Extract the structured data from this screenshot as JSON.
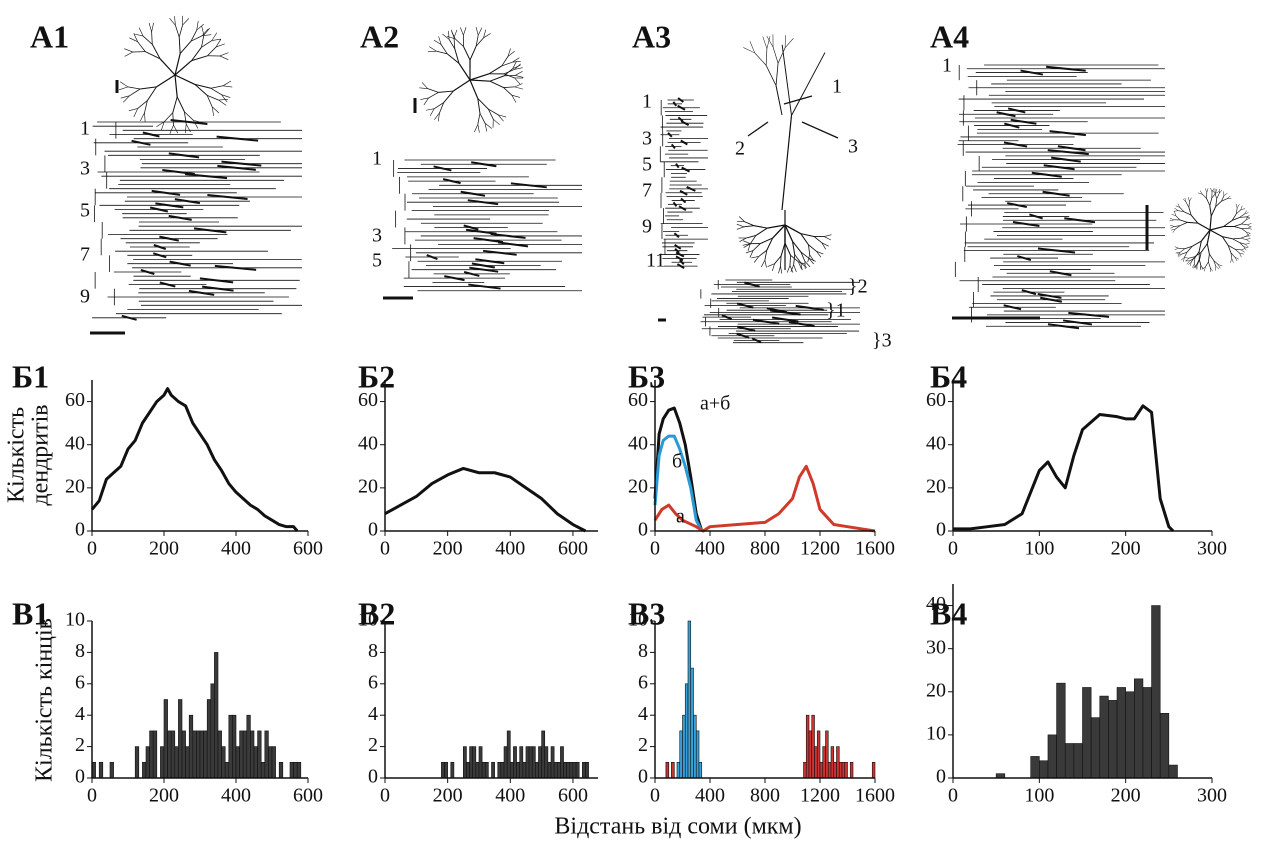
{
  "figure": {
    "xlabel": "Відстань від соми (мкм)"
  },
  "panels_a": [
    {
      "label": "A1",
      "numbers": [
        "1",
        "3",
        "5",
        "7",
        "9"
      ]
    },
    {
      "label": "A2",
      "numbers": [
        "1",
        "3",
        "5"
      ]
    },
    {
      "label": "A3",
      "numbers": [
        "1",
        "3",
        "5",
        "7",
        "9",
        "11"
      ],
      "arrows": [
        "1",
        "2",
        "3"
      ],
      "braces": [
        "}2",
        "}1",
        "}3"
      ]
    },
    {
      "label": "A4",
      "numbers": [
        "1"
      ]
    }
  ],
  "chart_data": [
    {
      "type": "line",
      "title": "Б1",
      "ylabel": [
        "Кількість",
        "дендритів"
      ],
      "color": "#111111",
      "xlim": [
        0,
        600
      ],
      "ylim": [
        0,
        70
      ],
      "xticks": [
        0,
        200,
        400,
        600
      ],
      "yticks": [
        0,
        20,
        40,
        60
      ],
      "x": [
        0,
        20,
        40,
        60,
        80,
        100,
        120,
        140,
        160,
        180,
        200,
        210,
        220,
        240,
        260,
        280,
        300,
        320,
        340,
        360,
        380,
        400,
        420,
        440,
        460,
        480,
        500,
        520,
        540,
        560,
        570
      ],
      "values": [
        10,
        14,
        24,
        27,
        30,
        38,
        42,
        50,
        55,
        60,
        63,
        66,
        63,
        60,
        58,
        50,
        45,
        40,
        33,
        28,
        22,
        18,
        15,
        12,
        10,
        7,
        5,
        3,
        2,
        2,
        0
      ]
    },
    {
      "type": "line",
      "title": "Б2",
      "color": "#111111",
      "xlim": [
        0,
        680
      ],
      "ylim": [
        0,
        70
      ],
      "xticks": [
        0,
        200,
        400,
        600
      ],
      "yticks": [
        0,
        20,
        40,
        60
      ],
      "x": [
        0,
        50,
        100,
        150,
        200,
        250,
        300,
        350,
        400,
        450,
        500,
        550,
        600,
        640
      ],
      "values": [
        8,
        12,
        16,
        22,
        26,
        29,
        27,
        27,
        25,
        20,
        15,
        8,
        3,
        0
      ]
    },
    {
      "type": "line",
      "title": "Б3",
      "xlim": [
        0,
        1600
      ],
      "ylim": [
        0,
        70
      ],
      "xticks": [
        0,
        400,
        800,
        1200,
        1600
      ],
      "yticks": [
        0,
        20,
        40,
        60
      ],
      "series": [
        {
          "name": "а+б",
          "color": "#111111",
          "x": [
            0,
            30,
            60,
            100,
            140,
            180,
            220,
            260,
            300,
            340
          ],
          "values": [
            15,
            45,
            52,
            56,
            57,
            50,
            40,
            25,
            8,
            0
          ]
        },
        {
          "name": "б",
          "color": "#2a9ad6",
          "x": [
            0,
            30,
            60,
            100,
            140,
            180,
            220,
            260,
            300,
            340
          ],
          "values": [
            12,
            35,
            42,
            44,
            44,
            38,
            30,
            20,
            5,
            0
          ]
        },
        {
          "name": "а",
          "color": "#d03a2a",
          "x": [
            0,
            50,
            100,
            150,
            200,
            300,
            350,
            400,
            600,
            800,
            900,
            1000,
            1050,
            1100,
            1150,
            1200,
            1300,
            1400,
            1600
          ],
          "values": [
            5,
            10,
            12,
            8,
            5,
            2,
            0,
            2,
            3,
            4,
            8,
            15,
            25,
            30,
            22,
            10,
            3,
            2,
            0
          ]
        }
      ]
    },
    {
      "type": "line",
      "title": "Б4",
      "color": "#111111",
      "xlim": [
        0,
        300
      ],
      "ylim": [
        0,
        70
      ],
      "xticks": [
        0,
        100,
        200,
        300
      ],
      "yticks": [
        0,
        20,
        40,
        60
      ],
      "x": [
        0,
        20,
        40,
        60,
        80,
        100,
        110,
        120,
        130,
        140,
        150,
        170,
        190,
        200,
        210,
        220,
        230,
        240,
        250,
        255
      ],
      "values": [
        1,
        1,
        2,
        3,
        8,
        28,
        32,
        25,
        20,
        35,
        47,
        54,
        53,
        52,
        52,
        58,
        55,
        15,
        2,
        0
      ]
    },
    {
      "type": "histogram",
      "title": "В1",
      "ylabel": "Кількість кінців",
      "color": "#3a3a3a",
      "xlim": [
        0,
        600
      ],
      "ylim": [
        0,
        10
      ],
      "xticks": [
        0,
        200,
        400,
        600
      ],
      "yticks": [
        0,
        2,
        4,
        6,
        8,
        10
      ],
      "bins": [
        0,
        10,
        20,
        30,
        40,
        50,
        60,
        70,
        80,
        90,
        100,
        110,
        120,
        130,
        140,
        150,
        160,
        170,
        180,
        190,
        200,
        210,
        220,
        230,
        240,
        250,
        260,
        270,
        280,
        290,
        300,
        310,
        320,
        330,
        340,
        350,
        360,
        370,
        380,
        390,
        400,
        410,
        420,
        430,
        440,
        450,
        460,
        470,
        480,
        490,
        500,
        510,
        520,
        530,
        540,
        550,
        560,
        570,
        580,
        590,
        600
      ],
      "values": [
        1,
        0,
        1,
        0,
        0,
        1,
        0,
        0,
        0,
        0,
        0,
        0,
        2,
        0,
        1,
        2,
        3,
        3,
        0,
        2,
        5,
        3,
        3,
        2,
        5,
        3,
        2,
        4,
        3,
        3,
        3,
        3,
        5,
        6,
        8,
        3,
        2,
        1,
        4,
        4,
        2,
        3,
        3,
        4,
        3,
        2,
        3,
        1,
        3,
        2,
        2,
        0,
        1,
        0,
        0,
        1,
        1,
        1,
        0,
        0
      ]
    },
    {
      "type": "histogram",
      "title": "В2",
      "color": "#3a3a3a",
      "xlim": [
        0,
        680
      ],
      "ylim": [
        0,
        10
      ],
      "xticks": [
        0,
        200,
        400,
        600
      ],
      "yticks": [
        0,
        2,
        4,
        6,
        8,
        10
      ],
      "bins": [
        0,
        10,
        20,
        30,
        40,
        50,
        60,
        70,
        80,
        90,
        100,
        110,
        120,
        130,
        140,
        150,
        160,
        170,
        180,
        190,
        200,
        210,
        220,
        230,
        240,
        250,
        260,
        270,
        280,
        290,
        300,
        310,
        320,
        330,
        340,
        350,
        360,
        370,
        380,
        390,
        400,
        410,
        420,
        430,
        440,
        450,
        460,
        470,
        480,
        490,
        500,
        510,
        520,
        530,
        540,
        550,
        560,
        570,
        580,
        590,
        600,
        610,
        620,
        630,
        640,
        650,
        660
      ],
      "values": [
        0,
        0,
        0,
        0,
        0,
        0,
        0,
        0,
        0,
        0,
        0,
        0,
        0,
        0,
        0,
        0,
        0,
        0,
        1,
        1,
        0,
        1,
        0,
        0,
        0,
        2,
        1,
        2,
        2,
        1,
        2,
        1,
        1,
        0,
        1,
        0,
        1,
        1,
        2,
        3,
        1,
        2,
        1,
        2,
        1,
        2,
        2,
        2,
        1,
        2,
        3,
        2,
        1,
        2,
        1,
        1,
        2,
        1,
        1,
        1,
        1,
        1,
        0,
        1,
        1,
        0
      ]
    },
    {
      "type": "histogram",
      "title": "В3",
      "xlim": [
        0,
        1600
      ],
      "ylim": [
        0,
        10
      ],
      "xticks": [
        0,
        400,
        800,
        1200,
        1600
      ],
      "yticks": [
        0,
        2,
        4,
        6,
        8,
        10
      ],
      "bins": [
        0,
        20,
        40,
        60,
        80,
        100,
        120,
        140,
        160,
        180,
        200,
        220,
        240,
        260,
        280,
        300,
        320,
        340,
        360,
        380,
        400,
        420,
        440,
        460,
        480,
        500,
        520,
        540,
        560,
        580,
        600,
        620,
        640,
        660,
        680,
        700,
        720,
        740,
        760,
        780,
        800,
        820,
        840,
        860,
        880,
        900,
        920,
        940,
        960,
        980,
        1000,
        1020,
        1040,
        1060,
        1080,
        1100,
        1120,
        1140,
        1160,
        1180,
        1200,
        1220,
        1240,
        1260,
        1280,
        1300,
        1320,
        1340,
        1360,
        1380,
        1400,
        1420,
        1440,
        1460,
        1480,
        1500,
        1520,
        1540,
        1560,
        1580,
        1600
      ],
      "series": [
        {
          "color": "#3aa0d8",
          "values": [
            0,
            0,
            0,
            0,
            1,
            0,
            1,
            0,
            1,
            3,
            4,
            6,
            10,
            7,
            4,
            3,
            1,
            0,
            0,
            0,
            0,
            0,
            0,
            0,
            0,
            0,
            0,
            0,
            0,
            0,
            0,
            0,
            0,
            0,
            0,
            0,
            0,
            0,
            0,
            0,
            0,
            0,
            0,
            0,
            0,
            0,
            0,
            0,
            0,
            0,
            0,
            0,
            0,
            0,
            0,
            0,
            0,
            0,
            0,
            0,
            0,
            0,
            0,
            0,
            0,
            0,
            0,
            0,
            0,
            0,
            0,
            0,
            0,
            0,
            0,
            0,
            0,
            0,
            0,
            0
          ]
        },
        {
          "color": "#cc3333",
          "values": [
            0,
            0,
            0,
            0,
            1,
            0,
            1,
            0,
            0,
            0,
            0,
            0,
            0,
            0,
            0,
            0,
            0,
            0,
            0,
            0,
            0,
            0,
            0,
            0,
            0,
            0,
            0,
            0,
            0,
            0,
            0,
            0,
            0,
            0,
            0,
            0,
            0,
            0,
            0,
            0,
            0,
            0,
            0,
            0,
            0,
            0,
            0,
            0,
            0,
            0,
            0,
            0,
            0,
            0,
            1,
            4,
            3,
            4,
            2,
            3,
            1,
            2,
            3,
            1,
            2,
            1,
            2,
            1,
            1,
            1,
            0,
            1,
            0,
            0,
            0,
            0,
            0,
            0,
            0,
            1
          ]
        }
      ]
    },
    {
      "type": "histogram",
      "title": "В4",
      "color": "#3a3a3a",
      "xlim": [
        0,
        300
      ],
      "ylim": [
        0,
        45
      ],
      "xticks": [
        0,
        100,
        200,
        300
      ],
      "yticks": [
        0,
        10,
        20,
        30,
        40
      ],
      "bins": [
        0,
        10,
        20,
        30,
        40,
        50,
        60,
        70,
        80,
        90,
        100,
        110,
        120,
        130,
        140,
        150,
        160,
        170,
        180,
        190,
        200,
        210,
        220,
        230,
        240,
        250,
        260
      ],
      "values": [
        0,
        0,
        0,
        0,
        0,
        1,
        0,
        0,
        0,
        5,
        4,
        10,
        22,
        8,
        8,
        21,
        14,
        19,
        18,
        21,
        20,
        23,
        21,
        40,
        15,
        3
      ]
    }
  ]
}
